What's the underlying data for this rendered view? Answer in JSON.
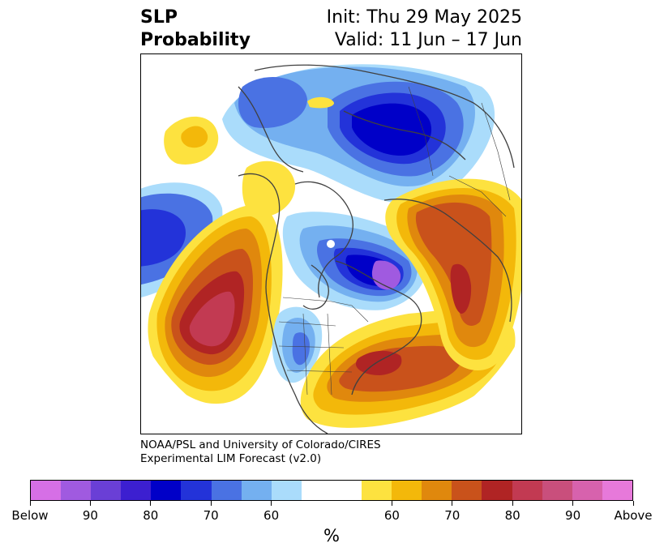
{
  "header": {
    "title_line1": "SLP",
    "title_line2": "Probability",
    "init": "Init: Thu 29 May 2025",
    "valid": "Valid: 11 Jun – 17 Jun"
  },
  "credit": {
    "line1": "NOAA/PSL and University of Colorado/CIRES",
    "line2": "Experimental LIM Forecast (v2.0)"
  },
  "colorbar": {
    "unit": "%",
    "labels": [
      "Below",
      "90",
      "80",
      "70",
      "60",
      "60",
      "70",
      "80",
      "90",
      "Above"
    ],
    "colors": [
      "#d66fe6",
      "#a05ae0",
      "#6a3fd6",
      "#3c1fd0",
      "#0000c8",
      "#2333d9",
      "#4a72e3",
      "#74b0f0",
      "#aadcfb",
      "#ffffff",
      "#ffffff",
      "#fde23f",
      "#f3b80a",
      "#e0880d",
      "#c9521b",
      "#b02424",
      "#c23a52",
      "#c94f7c",
      "#d762ad",
      "#e779da"
    ]
  },
  "map": {
    "colors": {
      "below_extreme": "#a05ae0",
      "below_80": "#0000c8",
      "below_75": "#2333d9",
      "below_70": "#4a72e3",
      "below_65": "#74b0f0",
      "below_60": "#aadcfb",
      "above_60": "#fde23f",
      "above_65": "#f3b80a",
      "above_70": "#e0880d",
      "above_75": "#c9521b",
      "above_80": "#b02424",
      "above_85": "#c23a52"
    }
  }
}
